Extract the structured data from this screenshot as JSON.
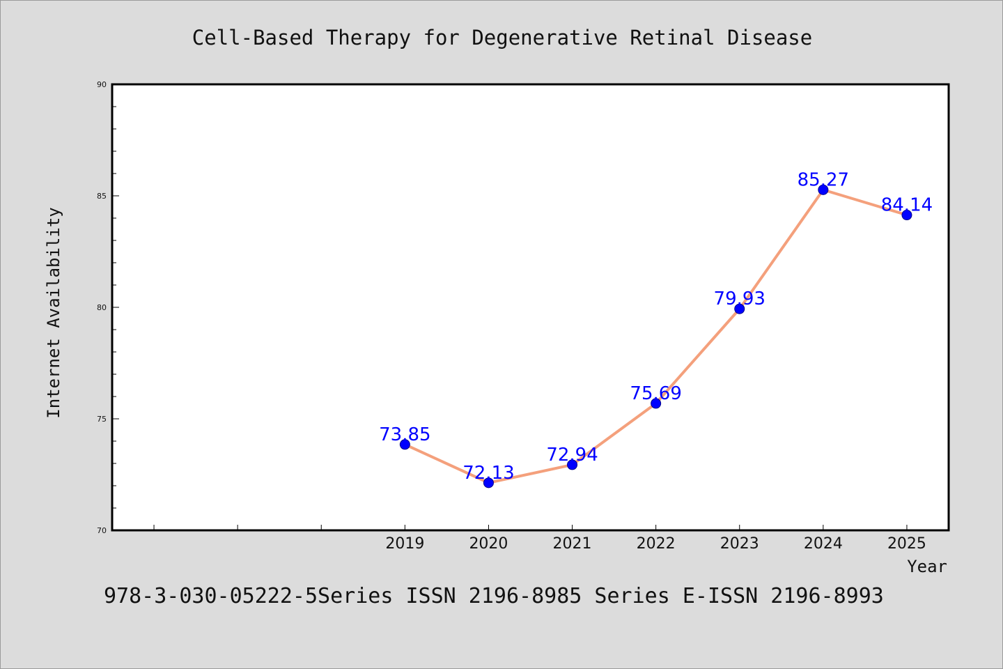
{
  "chart_data": {
    "type": "line",
    "title": "Cell-Based Therapy for Degenerative Retinal Disease",
    "xlabel": "Year",
    "ylabel": "Internet Availability",
    "x": [
      2019,
      2020,
      2021,
      2022,
      2023,
      2024,
      2025
    ],
    "x_tick_labels": [
      "2019",
      "2020",
      "2021",
      "2022",
      "2023",
      "2024",
      "2025"
    ],
    "xlim": [
      2015.5,
      2025.5
    ],
    "ylim": [
      70,
      90
    ],
    "y_ticks": [
      70,
      75,
      80,
      85,
      90
    ],
    "y_tick_labels": [
      "70",
      "75",
      "80",
      "85",
      "90"
    ],
    "series": [
      {
        "values": [
          73.85,
          72.13,
          72.94,
          75.69,
          79.93,
          85.27,
          84.14
        ],
        "labels": [
          "73.85",
          "72.13",
          "72.94",
          "75.69",
          "79.93",
          "85.27",
          "84.14"
        ]
      }
    ],
    "grid": false,
    "line_color": "#f4a07c",
    "marker_color": "#0000ff",
    "label_color": "#0000ff"
  },
  "footer": "978-3-030-05222-5Series ISSN 2196-8985 Series E-ISSN 2196-8993"
}
